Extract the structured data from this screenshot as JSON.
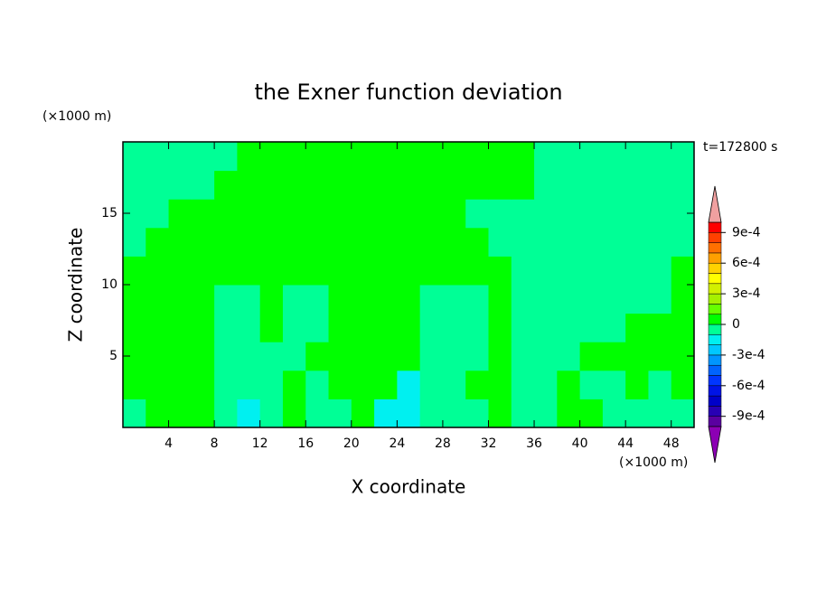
{
  "chart_data": {
    "type": "contour",
    "title": "the Exner function deviation",
    "x_label": "X coordinate",
    "y_label": "Z coordinate",
    "x_unit": "(×1000 m)",
    "y_unit": "(×1000 m)",
    "time_label": "t=172800 s",
    "xlim": [
      0,
      50
    ],
    "ylim": [
      0,
      20
    ],
    "xticks": [
      4,
      8,
      12,
      16,
      20,
      24,
      28,
      32,
      36,
      40,
      44,
      48
    ],
    "yticks": [
      5,
      10,
      15
    ],
    "xbins": [
      0,
      2,
      4,
      6,
      8,
      10,
      12,
      14,
      16,
      18,
      20,
      22,
      24,
      26,
      28,
      30,
      32,
      34,
      36,
      38,
      40,
      42,
      44,
      46,
      48,
      50
    ],
    "ybins": [
      0,
      2,
      4,
      6,
      8,
      10,
      12,
      14,
      16,
      18,
      20
    ],
    "values": [
      [
        -5e-05,
        5e-05,
        5e-05,
        5e-05,
        -5e-05,
        -0.00015,
        -5e-05,
        5e-05,
        -5e-05,
        -5e-05,
        5e-05,
        -0.00015,
        -0.00015,
        -5e-05,
        -5e-05,
        -5e-05,
        5e-05,
        -5e-05,
        -5e-05,
        5e-05,
        5e-05,
        -5e-05,
        -5e-05,
        -5e-05,
        -5e-05
      ],
      [
        5e-05,
        5e-05,
        5e-05,
        5e-05,
        -5e-05,
        -5e-05,
        -5e-05,
        5e-05,
        -5e-05,
        5e-05,
        5e-05,
        5e-05,
        -0.00015,
        -5e-05,
        -5e-05,
        5e-05,
        5e-05,
        -5e-05,
        -5e-05,
        5e-05,
        -5e-05,
        -5e-05,
        5e-05,
        -5e-05,
        5e-05
      ],
      [
        5e-05,
        5e-05,
        5e-05,
        5e-05,
        -5e-05,
        -5e-05,
        -5e-05,
        -5e-05,
        5e-05,
        5e-05,
        5e-05,
        5e-05,
        5e-05,
        -5e-05,
        -5e-05,
        -5e-05,
        5e-05,
        -5e-05,
        -5e-05,
        -5e-05,
        5e-05,
        5e-05,
        5e-05,
        5e-05,
        5e-05
      ],
      [
        5e-05,
        5e-05,
        5e-05,
        5e-05,
        -5e-05,
        -5e-05,
        5e-05,
        -5e-05,
        -5e-05,
        5e-05,
        5e-05,
        5e-05,
        5e-05,
        -5e-05,
        -5e-05,
        -5e-05,
        5e-05,
        -5e-05,
        -5e-05,
        -5e-05,
        -5e-05,
        -5e-05,
        5e-05,
        5e-05,
        5e-05
      ],
      [
        5e-05,
        5e-05,
        5e-05,
        5e-05,
        -5e-05,
        -5e-05,
        5e-05,
        -5e-05,
        -5e-05,
        5e-05,
        5e-05,
        5e-05,
        5e-05,
        -5e-05,
        -5e-05,
        -5e-05,
        5e-05,
        -5e-05,
        -5e-05,
        -5e-05,
        -5e-05,
        -5e-05,
        -5e-05,
        -5e-05,
        5e-05
      ],
      [
        5e-05,
        5e-05,
        5e-05,
        5e-05,
        5e-05,
        5e-05,
        5e-05,
        5e-05,
        5e-05,
        5e-05,
        5e-05,
        5e-05,
        5e-05,
        5e-05,
        5e-05,
        5e-05,
        5e-05,
        -5e-05,
        -5e-05,
        -5e-05,
        -5e-05,
        -5e-05,
        -5e-05,
        -5e-05,
        5e-05
      ],
      [
        -5e-05,
        5e-05,
        5e-05,
        5e-05,
        5e-05,
        5e-05,
        5e-05,
        5e-05,
        5e-05,
        5e-05,
        5e-05,
        5e-05,
        5e-05,
        5e-05,
        5e-05,
        5e-05,
        -5e-05,
        -5e-05,
        -5e-05,
        -5e-05,
        -5e-05,
        -5e-05,
        -5e-05,
        -5e-05,
        -5e-05
      ],
      [
        -5e-05,
        -5e-05,
        5e-05,
        5e-05,
        5e-05,
        5e-05,
        5e-05,
        5e-05,
        5e-05,
        5e-05,
        5e-05,
        5e-05,
        5e-05,
        5e-05,
        5e-05,
        -5e-05,
        -5e-05,
        -5e-05,
        -5e-05,
        -5e-05,
        -5e-05,
        -5e-05,
        -5e-05,
        -5e-05,
        -5e-05
      ],
      [
        -5e-05,
        -5e-05,
        -5e-05,
        -5e-05,
        5e-05,
        5e-05,
        5e-05,
        5e-05,
        5e-05,
        5e-05,
        5e-05,
        5e-05,
        5e-05,
        5e-05,
        5e-05,
        5e-05,
        5e-05,
        5e-05,
        -5e-05,
        -5e-05,
        -5e-05,
        -5e-05,
        -5e-05,
        -5e-05,
        -5e-05
      ],
      [
        -5e-05,
        -5e-05,
        -5e-05,
        -5e-05,
        -5e-05,
        5e-05,
        5e-05,
        5e-05,
        5e-05,
        5e-05,
        5e-05,
        5e-05,
        5e-05,
        5e-05,
        5e-05,
        5e-05,
        5e-05,
        5e-05,
        -5e-05,
        -5e-05,
        -5e-05,
        -5e-05,
        -5e-05,
        -5e-05,
        -5e-05
      ]
    ],
    "levels": [
      -0.001,
      -0.0009,
      -0.0008,
      -0.0007,
      -0.0006,
      -0.0005,
      -0.0004,
      -0.0003,
      -0.0002,
      -0.0001,
      0,
      0.0001,
      0.0002,
      0.0003,
      0.0004,
      0.0005,
      0.0006,
      0.0007,
      0.0008,
      0.0009,
      0.001
    ],
    "colors": [
      "#5a00a0",
      "#2800b4",
      "#0000c8",
      "#0014e6",
      "#0036ff",
      "#0064ff",
      "#0096ff",
      "#00c8ff",
      "#00f0f0",
      "#00ff96",
      "#00ff00",
      "#66ff00",
      "#a6f000",
      "#d2f000",
      "#ffff00",
      "#ffd200",
      "#ffa000",
      "#ff7000",
      "#ff4000",
      "#ff0000"
    ],
    "under_color": "#8c00b4",
    "over_color": "#f0a0a0",
    "colorbar_ticks": [
      {
        "value": 0.0009,
        "label": "9e-4"
      },
      {
        "value": 0.0006,
        "label": "6e-4"
      },
      {
        "value": 0.0003,
        "label": "3e-4"
      },
      0,
      {
        "value": -0.0003,
        "label": "-3e-4"
      },
      {
        "value": -0.0006,
        "label": "-6e-4"
      },
      {
        "value": -0.0009,
        "label": "-9e-4"
      }
    ]
  }
}
